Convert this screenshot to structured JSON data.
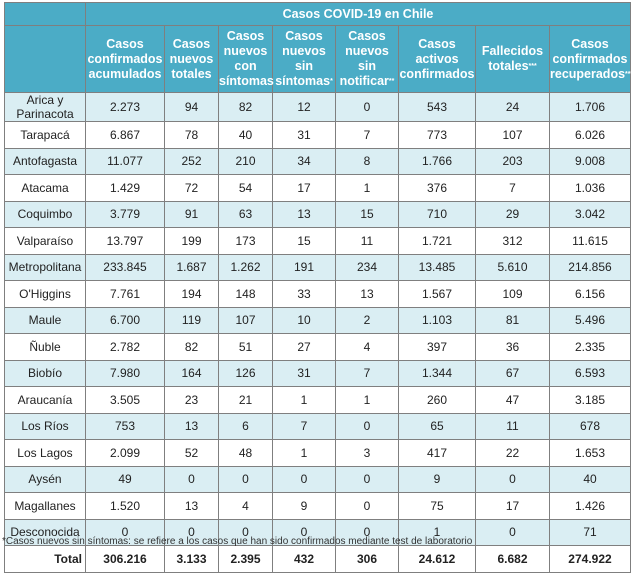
{
  "table": {
    "title": "Casos COVID-19 en Chile",
    "headers": [
      {
        "text": "Casos confirmados acumulados",
        "mark": ""
      },
      {
        "text": "Casos nuevos totales",
        "mark": ""
      },
      {
        "text": "Casos nuevos con síntomas",
        "mark": ""
      },
      {
        "text": "Casos nuevos sin síntomas",
        "mark": "*"
      },
      {
        "text": "Casos nuevos sin notificar",
        "mark": "**"
      },
      {
        "text": "Casos activos confirmados",
        "mark": ""
      },
      {
        "text": "Fallecidos totales",
        "mark": "***"
      },
      {
        "text": "Casos confirmados recuperados",
        "mark": "****"
      }
    ],
    "rows": [
      {
        "region": "Arica y Parinacota",
        "values": [
          "2.273",
          "94",
          "82",
          "12",
          "0",
          "543",
          "24",
          "1.706"
        ]
      },
      {
        "region": "Tarapacá",
        "values": [
          "6.867",
          "78",
          "40",
          "31",
          "7",
          "773",
          "107",
          "6.026"
        ]
      },
      {
        "region": "Antofagasta",
        "values": [
          "11.077",
          "252",
          "210",
          "34",
          "8",
          "1.766",
          "203",
          "9.008"
        ]
      },
      {
        "region": "Atacama",
        "values": [
          "1.429",
          "72",
          "54",
          "17",
          "1",
          "376",
          "7",
          "1.036"
        ]
      },
      {
        "region": "Coquimbo",
        "values": [
          "3.779",
          "91",
          "63",
          "13",
          "15",
          "710",
          "29",
          "3.042"
        ]
      },
      {
        "region": "Valparaíso",
        "values": [
          "13.797",
          "199",
          "173",
          "15",
          "11",
          "1.721",
          "312",
          "11.615"
        ]
      },
      {
        "region": "Metropolitana",
        "values": [
          "233.845",
          "1.687",
          "1.262",
          "191",
          "234",
          "13.485",
          "5.610",
          "214.856"
        ]
      },
      {
        "region": "O'Higgins",
        "values": [
          "7.761",
          "194",
          "148",
          "33",
          "13",
          "1.567",
          "109",
          "6.156"
        ]
      },
      {
        "region": "Maule",
        "values": [
          "6.700",
          "119",
          "107",
          "10",
          "2",
          "1.103",
          "81",
          "5.496"
        ]
      },
      {
        "region": "Ñuble",
        "values": [
          "2.782",
          "82",
          "51",
          "27",
          "4",
          "397",
          "36",
          "2.335"
        ]
      },
      {
        "region": "Biobío",
        "values": [
          "7.980",
          "164",
          "126",
          "31",
          "7",
          "1.344",
          "67",
          "6.593"
        ]
      },
      {
        "region": "Araucanía",
        "values": [
          "3.505",
          "23",
          "21",
          "1",
          "1",
          "260",
          "47",
          "3.185"
        ]
      },
      {
        "region": "Los Ríos",
        "values": [
          "753",
          "13",
          "6",
          "7",
          "0",
          "65",
          "11",
          "678"
        ]
      },
      {
        "region": "Los Lagos",
        "values": [
          "2.099",
          "52",
          "48",
          "1",
          "3",
          "417",
          "22",
          "1.653"
        ]
      },
      {
        "region": "Aysén",
        "values": [
          "49",
          "0",
          "0",
          "0",
          "0",
          "9",
          "0",
          "40"
        ]
      },
      {
        "region": "Magallanes",
        "values": [
          "1.520",
          "13",
          "4",
          "9",
          "0",
          "75",
          "17",
          "1.426"
        ]
      },
      {
        "region": "Desconocida",
        "values": [
          "0",
          "0",
          "0",
          "0",
          "0",
          "1",
          "0",
          "71"
        ]
      }
    ],
    "total": {
      "label": "Total",
      "values": [
        "306.216",
        "3.133",
        "2.395",
        "432",
        "306",
        "24.612",
        "6.682",
        "274.922"
      ]
    }
  },
  "colors": {
    "header_bg": "#4bacc6",
    "alt_row_bg": "#daeef3"
  },
  "footnote": "*Casos nuevos sin síntomas: se refiere a los casos que han sido confirmados mediante test de laboratorio"
}
